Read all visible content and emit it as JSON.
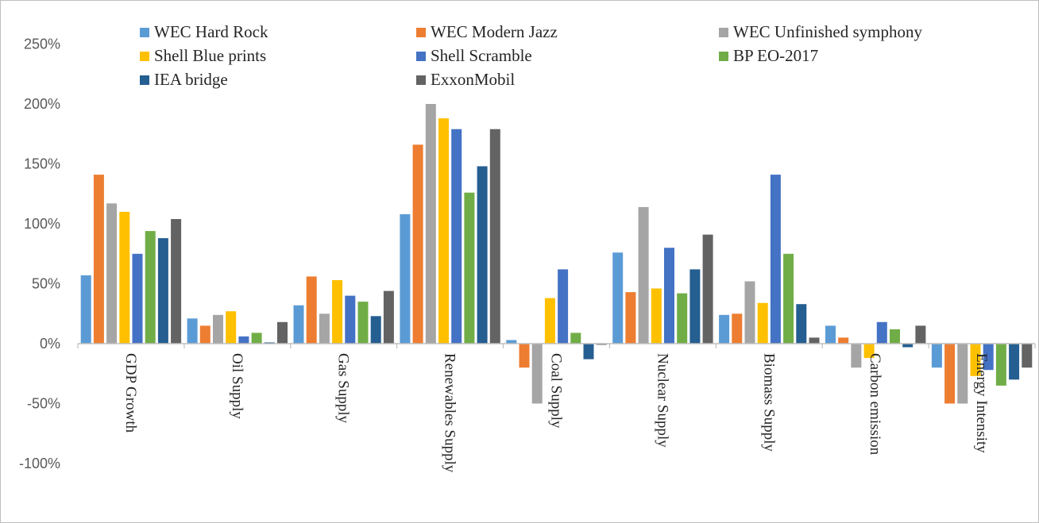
{
  "chart_data": {
    "type": "bar",
    "categories": [
      "GDP Growth",
      "Oil Supply",
      "Gas Supply",
      "Renewables Supply",
      "Coal Supply",
      "Nuclear Supply",
      "Biomass Supply",
      "Carbon emission",
      "Energy Intensity"
    ],
    "series": [
      {
        "name": "WEC Hard Rock",
        "color": "#5b9bd5",
        "values": [
          57,
          21,
          32,
          108,
          3,
          76,
          24,
          15,
          -20
        ]
      },
      {
        "name": "WEC Modern Jazz",
        "color": "#ed7d31",
        "values": [
          141,
          15,
          56,
          166,
          -20,
          43,
          25,
          5,
          -50
        ]
      },
      {
        "name": "WEC Unfinished symphony",
        "color": "#a5a5a5",
        "values": [
          117,
          24,
          25,
          200,
          -50,
          114,
          52,
          -20,
          -50
        ]
      },
      {
        "name": "Shell Blue prints",
        "color": "#ffc000",
        "values": [
          110,
          27,
          53,
          188,
          38,
          46,
          34,
          -12,
          -27
        ]
      },
      {
        "name": "Shell Scramble",
        "color": "#4472c4",
        "values": [
          75,
          6,
          40,
          179,
          62,
          80,
          141,
          18,
          -22
        ]
      },
      {
        "name": "BP EO-2017",
        "color": "#70ad47",
        "values": [
          94,
          9,
          35,
          126,
          9,
          42,
          75,
          12,
          -35
        ]
      },
      {
        "name": "IEA bridge",
        "color": "#255e91",
        "values": [
          88,
          1,
          23,
          148,
          -13,
          62,
          33,
          -3,
          -30
        ]
      },
      {
        "name": "ExxonMobil",
        "color": "#636363",
        "values": [
          104,
          18,
          44,
          179,
          -1,
          91,
          5,
          15,
          -20
        ]
      }
    ],
    "title": "",
    "xlabel": "",
    "ylabel": "",
    "ylim": [
      -100,
      250
    ],
    "yticks": [
      250,
      200,
      150,
      100,
      50,
      0,
      -50,
      -100
    ],
    "y_format": "percent",
    "grid": false,
    "legend_position": "top"
  }
}
